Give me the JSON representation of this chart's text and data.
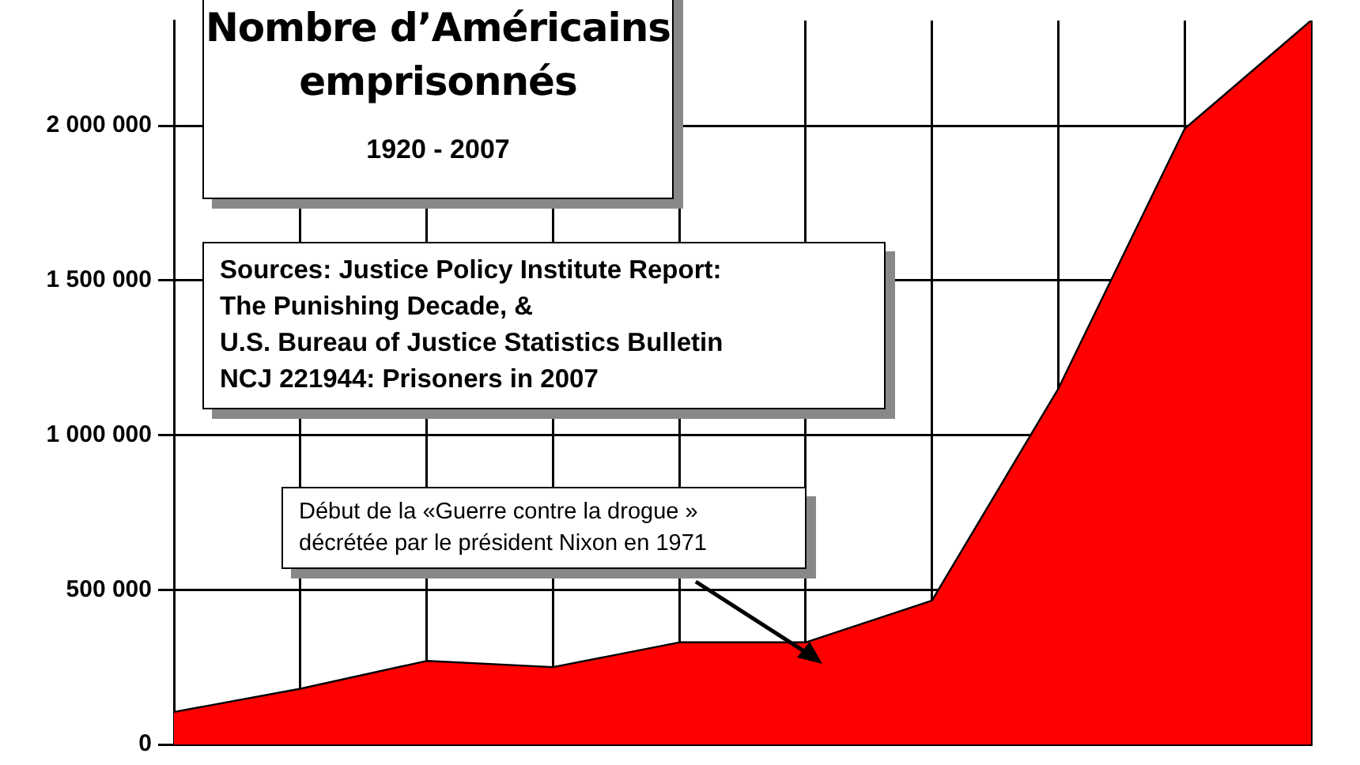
{
  "chart_data": {
    "type": "area",
    "title": "Nombre d’Américains emprisonnés",
    "subtitle": "1920 - 2007",
    "categories": [
      null,
      null,
      null,
      null,
      null,
      null,
      null,
      null,
      null,
      null
    ],
    "values": [
      105000,
      180000,
      270000,
      250000,
      330000,
      330000,
      465000,
      1150000,
      1990000,
      2340000
    ],
    "color": "#ff0000",
    "ylim": [
      0,
      2340000
    ],
    "yticks": [
      {
        "value": 0,
        "label": "0"
      },
      {
        "value": 500000,
        "label": "500 000"
      },
      {
        "value": 1000000,
        "label": "1 000 000"
      },
      {
        "value": 1500000,
        "label": "1 500 000"
      },
      {
        "value": 2000000,
        "label": "2 000 000"
      }
    ],
    "grid": true,
    "tick_labels": "y",
    "marker": "none",
    "annotations": [
      "Sources: Justice Policy Institute Report:\nThe Punishing Decade, &\nU.S. Bureau of Justice Statistics Bulletin\nNCJ 221944: Prisoners in 2007",
      "Début de la «Guerre contre la drogue »\ndécrétée par le président Nixon en 1971"
    ]
  }
}
